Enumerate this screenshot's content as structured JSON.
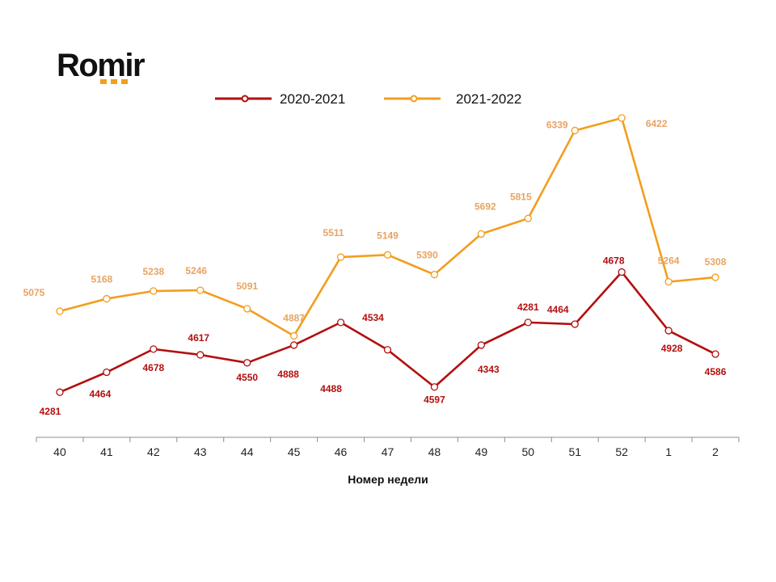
{
  "logo": {
    "text": "Romir"
  },
  "chart_data": {
    "type": "line",
    "categories": [
      "40",
      "41",
      "42",
      "43",
      "44",
      "45",
      "46",
      "47",
      "48",
      "49",
      "50",
      "51",
      "52",
      "1",
      "2"
    ],
    "xlabel": "Номер недели",
    "ylim": [
      3800,
      7000
    ],
    "legend_position": "top",
    "grid": false,
    "series": [
      {
        "name": "2020-2021",
        "color": "#b30f0f",
        "label_color": "#b30f0f",
        "values": [
          4281,
          4464,
          4678,
          4617,
          4550,
          4888,
          4488,
          4534,
          4597,
          4343,
          4281,
          4464,
          4678,
          4928,
          4586
        ],
        "labels": [
          "4281",
          "4464",
          "4678",
          "4617",
          "4550",
          "4888",
          "4488",
          "4534",
          "4597",
          "4343",
          "4281",
          "4464",
          "4678",
          "4928",
          "4586"
        ],
        "plot_values": [
          4040,
          4440,
          4905,
          4790,
          4630,
          4985,
          5440,
          4890,
          4145,
          4985,
          5440,
          5405,
          6450,
          5275,
          4805
        ]
      },
      {
        "name": "2021-2022",
        "color": "#f29e1f",
        "label_color": "#e8a363",
        "values": [
          5075,
          5168,
          5238,
          5246,
          5091,
          4887,
          5511,
          5149,
          5390,
          5692,
          5815,
          6339,
          6422,
          5264,
          5308
        ],
        "labels": [
          "5075",
          "5168",
          "5238",
          "5246",
          "5091",
          "4887",
          "5511",
          "5149",
          "5390",
          "5692",
          "5815",
          "6339",
          "6422",
          "5264",
          "5308"
        ],
        "plot_values": [
          5665,
          5915,
          6070,
          6085,
          5715,
          5170,
          6750,
          6795,
          6400,
          7215,
          7525,
          9290,
          9540,
          6255,
          6345
        ]
      }
    ]
  }
}
